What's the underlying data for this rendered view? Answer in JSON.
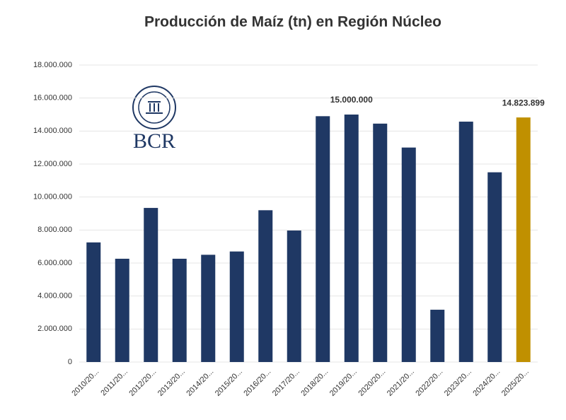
{
  "chart_data": {
    "type": "bar",
    "title": "Producción de Maíz (tn) en Región Núcleo",
    "logo": "BCR",
    "categories": [
      "2010/20...",
      "2011/20...",
      "2012/20...",
      "2013/20...",
      "2014/20...",
      "2015/20...",
      "2016/20...",
      "2017/20...",
      "2018/20...",
      "2019/20...",
      "2020/20...",
      "2021/20...",
      "2022/20...",
      "2023/20...",
      "2024/20...",
      "2025/20..."
    ],
    "values": [
      7250000,
      6260000,
      9340000,
      6260000,
      6500000,
      6700000,
      9200000,
      7970000,
      14900000,
      15000000,
      14450000,
      13000000,
      3170000,
      14570000,
      11500000,
      14823899
    ],
    "value_labels": [
      null,
      null,
      null,
      null,
      null,
      null,
      null,
      null,
      null,
      "15.000.000",
      null,
      null,
      null,
      null,
      null,
      "14.823.899"
    ],
    "colors": [
      "#1f3864",
      "#1f3864",
      "#1f3864",
      "#1f3864",
      "#1f3864",
      "#1f3864",
      "#1f3864",
      "#1f3864",
      "#1f3864",
      "#1f3864",
      "#1f3864",
      "#1f3864",
      "#1f3864",
      "#1f3864",
      "#1f3864",
      "#c09000"
    ],
    "ylim": [
      0,
      18000000
    ],
    "yticks": [
      0,
      {
        "value": 2000000,
        "label": "2.000.000"
      },
      {
        "value": 4000000,
        "label": "4.000.000"
      },
      {
        "value": 6000000,
        "label": "6.000.000"
      },
      {
        "value": 8000000,
        "label": "8.000.000"
      },
      {
        "value": 10000000,
        "label": "10.000.000"
      },
      {
        "value": 12000000,
        "label": "12.000.000"
      },
      {
        "value": 14000000,
        "label": "14.000.000"
      },
      {
        "value": 16000000,
        "label": "16.000.000"
      },
      {
        "value": 18000000,
        "label": "18.000.000"
      }
    ],
    "grid": true
  }
}
